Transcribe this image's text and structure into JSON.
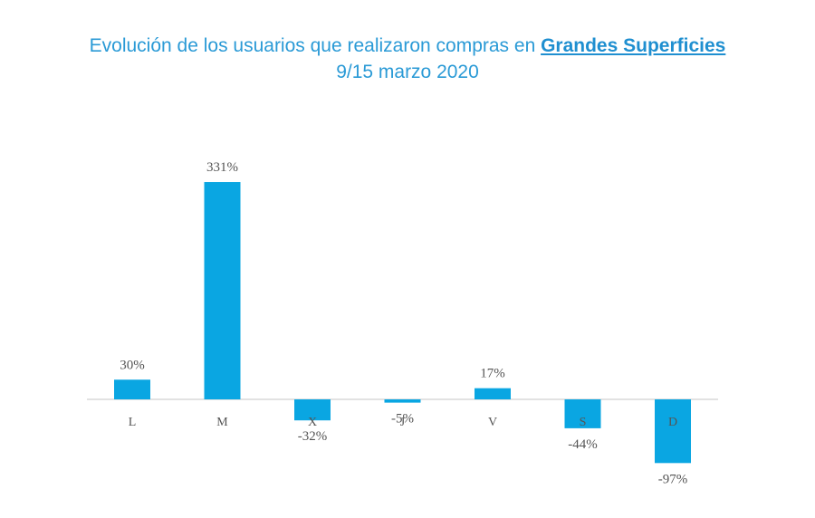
{
  "title": {
    "line1_prefix": "Evolución de los usuarios que realizaron compras en ",
    "line1_highlight": "Grandes Superficies",
    "line2": "9/15 marzo 2020"
  },
  "colors": {
    "bar": "#0aa6e2",
    "title": "#2a9ad6"
  },
  "chart_data": {
    "type": "bar",
    "title": "Evolución de los usuarios que realizaron compras en Grandes Superficies",
    "subtitle": "9/15 marzo 2020",
    "categories": [
      "L",
      "M",
      "X",
      "J",
      "V",
      "S",
      "D"
    ],
    "values": [
      30,
      331,
      -32,
      -5,
      17,
      -44,
      -97
    ],
    "value_labels": [
      "30%",
      "331%",
      "-32%",
      "-5%",
      "17%",
      "-44%",
      "-97%"
    ],
    "unit": "%",
    "xlabel": "",
    "ylabel": "",
    "grid": false,
    "legend": "none"
  }
}
